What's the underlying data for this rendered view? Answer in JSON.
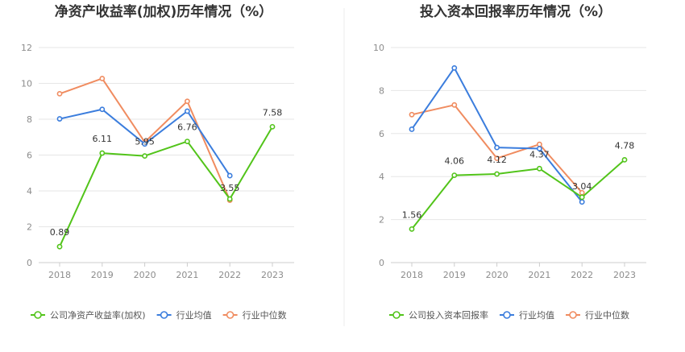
{
  "colors": {
    "company": "#52c41a",
    "industry_avg": "#3b7ddd",
    "industry_median": "#f08c60",
    "grid": "#e6e6e6",
    "axis": "#cccccc",
    "divider": "#eeeeee"
  },
  "chart_data": [
    {
      "type": "line",
      "title": "净资产收益率(加权)历年情况（%）",
      "categories": [
        "2018",
        "2019",
        "2020",
        "2021",
        "2022",
        "2023"
      ],
      "yticks": [
        "0",
        "2",
        "4",
        "6",
        "8",
        "10",
        "12"
      ],
      "ylim": [
        0,
        12
      ],
      "grid": true,
      "legend_position": "bottom-left",
      "series": [
        {
          "name": "公司净资产收益率(加权)",
          "key": "company",
          "values": [
            0.89,
            6.11,
            5.95,
            6.76,
            3.55,
            7.58
          ],
          "labels": [
            "0.89",
            "6.11",
            "5.95",
            "6.76",
            "3.55",
            "7.58"
          ]
        },
        {
          "name": "行业均值",
          "key": "industry_avg",
          "values": [
            8.02,
            8.55,
            6.62,
            8.45,
            4.85,
            null
          ]
        },
        {
          "name": "行业中位数",
          "key": "industry_median",
          "values": [
            9.42,
            10.27,
            6.72,
            9.0,
            3.48,
            null
          ]
        }
      ]
    },
    {
      "type": "line",
      "title": "投入资本回报率历年情况（%）",
      "categories": [
        "2018",
        "2019",
        "2020",
        "2021",
        "2022",
        "2023"
      ],
      "yticks": [
        "0",
        "2",
        "4",
        "6",
        "8",
        "10"
      ],
      "ylim": [
        0,
        10
      ],
      "grid": true,
      "legend_position": "bottom-left",
      "series": [
        {
          "name": "公司投入资本回报率",
          "key": "company",
          "values": [
            1.56,
            4.06,
            4.12,
            4.37,
            3.04,
            4.78
          ],
          "labels": [
            "1.56",
            "4.06",
            "4.12",
            "4.37",
            "3.04",
            "4.78"
          ]
        },
        {
          "name": "行业均值",
          "key": "industry_avg",
          "values": [
            6.2,
            9.05,
            5.35,
            5.3,
            2.82,
            null
          ]
        },
        {
          "name": "行业中位数",
          "key": "industry_median",
          "values": [
            6.88,
            7.33,
            4.85,
            5.5,
            3.25,
            null
          ]
        }
      ]
    }
  ]
}
